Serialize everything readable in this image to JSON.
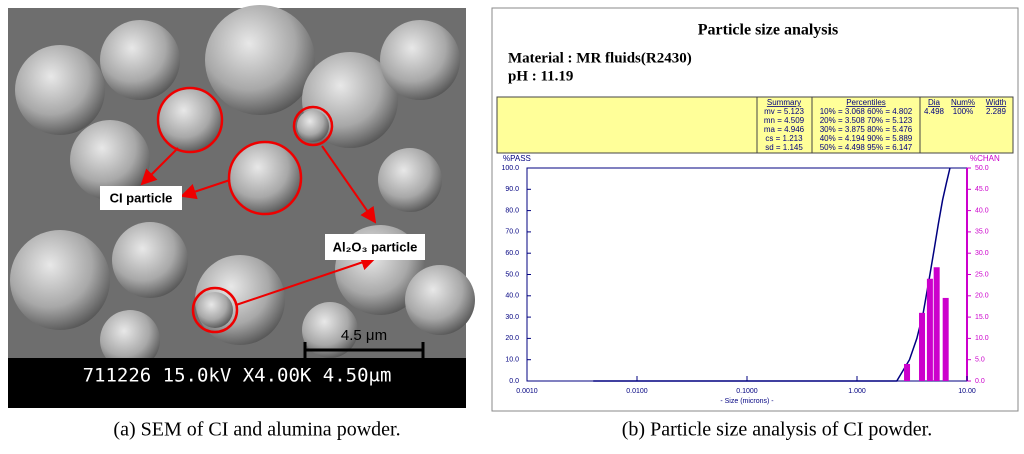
{
  "sem": {
    "label_ci": "CI particle",
    "label_al": "Al₂O₃ particle",
    "scale_label": "4.5 μm",
    "info_bar": "711226 15.0kV X4.00K 4.50μm",
    "caption": "(a) SEM of CI and alumina powder."
  },
  "chart_data": {
    "type": "combo",
    "title": "Particle size analysis",
    "material": "Material : MR fluids(R2430)",
    "ph": "pH : 11.19",
    "summary_table": {
      "headers": [
        "Summary",
        "Percentiles",
        "Dia",
        "Num%",
        "Width"
      ],
      "summary_rows": [
        "mv = 5.123",
        "mn = 4.509",
        "ma = 4.946",
        "cs = 1.213",
        "sd = 1.145"
      ],
      "percentile_rows": [
        "10% = 3.068  60% = 4.802",
        "20% = 3.508  70% = 5.123",
        "30% = 3.875  80% = 5.476",
        "40% = 4.194  90% = 5.889",
        "50% = 4.498  95% = 6.147"
      ],
      "peak_row": [
        "4.498",
        "100%",
        "2.289"
      ]
    },
    "ylabel": "%PASS",
    "y2label": "%CHAN",
    "xlabel": "- Size (microns) -",
    "log_x": true,
    "xlim": [
      0.001,
      10
    ],
    "xticks": [
      {
        "value": 0.001,
        "label": "0.0010"
      },
      {
        "value": 0.01,
        "label": "0.0100"
      },
      {
        "value": 0.1,
        "label": "0.1000"
      },
      {
        "value": 1,
        "label": "1.000"
      },
      {
        "value": 10,
        "label": "10.00"
      }
    ],
    "ylim": [
      0,
      100
    ],
    "yticks": [
      {
        "value": 0,
        "label": "0.0"
      },
      {
        "value": 10,
        "label": "10.0"
      },
      {
        "value": 20,
        "label": "20.0"
      },
      {
        "value": 30,
        "label": "30.0"
      },
      {
        "value": 40,
        "label": "40.0"
      },
      {
        "value": 50,
        "label": "50.0"
      },
      {
        "value": 60,
        "label": "60.0"
      },
      {
        "value": 70,
        "label": "70.0"
      },
      {
        "value": 80,
        "label": "80.0"
      },
      {
        "value": 90,
        "label": "90.0"
      },
      {
        "value": 100,
        "label": "100.0"
      }
    ],
    "y2lim": [
      0,
      50
    ],
    "y2ticks": [
      {
        "value": 0,
        "label": "0.0"
      },
      {
        "value": 5,
        "label": "5.0"
      },
      {
        "value": 10,
        "label": "10.0"
      },
      {
        "value": 15,
        "label": "15.0"
      },
      {
        "value": 20,
        "label": "20.0"
      },
      {
        "value": 25,
        "label": "25.0"
      },
      {
        "value": 30,
        "label": "30.0"
      },
      {
        "value": 35,
        "label": "35.0"
      },
      {
        "value": 40,
        "label": "40.0"
      },
      {
        "value": 45,
        "label": "45.0"
      },
      {
        "value": 50,
        "label": "50.0"
      }
    ],
    "series": [
      {
        "type": "line",
        "color": "#000080",
        "x": [
          0.004,
          2.3,
          3.0,
          3.5,
          4.0,
          4.5,
          5.0,
          5.5,
          6.0,
          6.5,
          7.0
        ],
        "values": [
          0,
          0,
          10,
          20,
          32,
          47,
          61,
          74,
          85,
          93,
          100
        ]
      },
      {
        "type": "bar",
        "axis": "y2",
        "color": "#cc00cc",
        "x": [
          2.85,
          3.9,
          4.6,
          5.3,
          6.4
        ],
        "values": [
          4,
          16,
          24,
          26.7,
          19.5
        ]
      }
    ]
  },
  "caption_b": "(b)  Particle size analysis of CI powder."
}
